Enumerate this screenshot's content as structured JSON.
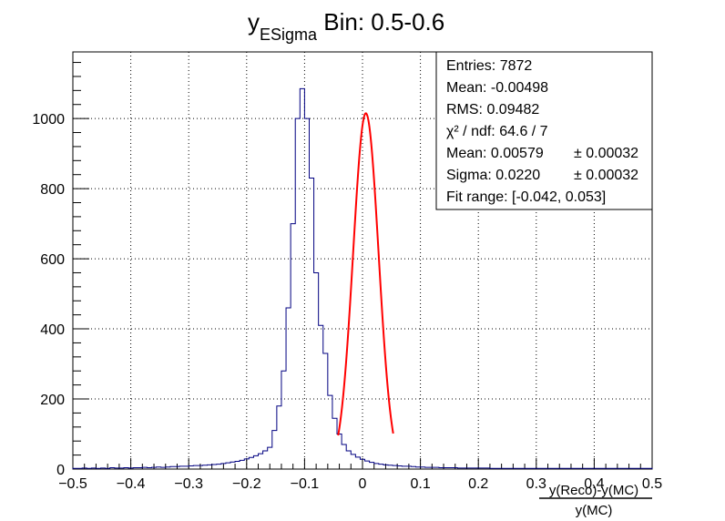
{
  "chart_data": {
    "type": "histogram",
    "title_main": "y",
    "title_sub": "ESigma",
    "title_rest": " Bin: 0.5-0.6",
    "xlim": [
      -0.5,
      0.5
    ],
    "ylim": [
      0,
      1190
    ],
    "grid": true,
    "x_ticks": [
      "−0.5",
      "−0.4",
      "−0.3",
      "−0.2",
      "−0.1",
      "0",
      "0.1",
      "0.2",
      "0.3",
      "0.4",
      "0.5"
    ],
    "y_ticks": [
      "0",
      "200",
      "400",
      "600",
      "800",
      "1000"
    ],
    "x_tick_values": [
      -0.5,
      -0.4,
      -0.3,
      -0.2,
      -0.1,
      0,
      0.1,
      0.2,
      0.3,
      0.4,
      0.5
    ],
    "y_tick_values": [
      0,
      200,
      400,
      600,
      800,
      1000
    ],
    "xlabel_numerator": "y(Reco)-y(MC)",
    "xlabel_denominator": "y(MC)",
    "histogram": {
      "bin_width": 0.008,
      "x_start": -0.5,
      "counts": [
        2,
        2,
        3,
        2,
        3,
        2,
        3,
        2,
        4,
        3,
        3,
        4,
        3,
        4,
        4,
        5,
        4,
        5,
        6,
        5,
        6,
        7,
        7,
        8,
        8,
        9,
        10,
        10,
        11,
        12,
        13,
        14,
        16,
        18,
        20,
        22,
        25,
        29,
        33,
        38,
        44,
        52,
        62,
        110,
        180,
        280,
        460,
        700,
        1000,
        1085,
        1000,
        830,
        560,
        410,
        330,
        210,
        145,
        100,
        70,
        52,
        42,
        34,
        28,
        23,
        19,
        16,
        14,
        12,
        11,
        10,
        9,
        8,
        8,
        7,
        6,
        6,
        5,
        5,
        5,
        4,
        4,
        4,
        4,
        3,
        3,
        3,
        3,
        3,
        3,
        3,
        2,
        2,
        2,
        2,
        2,
        2,
        2,
        2,
        2,
        2,
        2,
        2,
        2,
        2,
        2,
        2,
        2,
        2,
        2,
        2,
        2,
        2,
        2,
        2,
        2,
        2,
        2,
        2,
        2,
        2,
        2,
        2,
        2,
        2,
        2
      ],
      "line_color": "#000080"
    },
    "fit": {
      "function": "gaus",
      "mean": 0.00579,
      "sigma": 0.022,
      "amplitude": 1015,
      "range": [
        -0.042,
        0.053
      ],
      "color": "#ff0000"
    }
  },
  "stats": {
    "lines": [
      {
        "label": "Entries: 7872",
        "err": ""
      },
      {
        "label": "Mean: -0.00498",
        "err": ""
      },
      {
        "label": "RMS: 0.09482",
        "err": ""
      },
      {
        "label": "χ² / ndf: 64.6 / 7",
        "err": ""
      },
      {
        "label": "Mean: 0.00579",
        "err": "± 0.00032"
      },
      {
        "label": "Sigma: 0.0220",
        "err": "± 0.00032"
      },
      {
        "label": "Fit range: [-0.042, 0.053]",
        "err": ""
      }
    ]
  }
}
